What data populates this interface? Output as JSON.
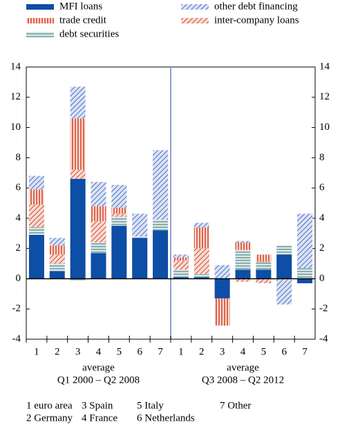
{
  "chart_data": {
    "type": "stacked-bar",
    "categories": [
      "1",
      "2",
      "3",
      "4",
      "5",
      "6",
      "7",
      "1",
      "2",
      "3",
      "4",
      "5",
      "6",
      "7"
    ],
    "groups": [
      {
        "label": "average",
        "period": "Q1 2000 – Q2 2008"
      },
      {
        "label": "average",
        "period": "Q3 2008 – Q2 2012"
      }
    ],
    "series": [
      {
        "name": "MFI loans",
        "color": "#0d4ea6",
        "pattern": "solid",
        "values": [
          2.9,
          0.5,
          6.6,
          1.7,
          3.5,
          2.7,
          3.2,
          0.1,
          0.1,
          -1.3,
          0.6,
          0.6,
          1.6,
          -0.3
        ]
      },
      {
        "name": "debt securities",
        "color": "#6f9fa0",
        "pattern": "horizontal",
        "values": [
          0.5,
          0.5,
          -0.1,
          0.7,
          0.6,
          0.1,
          0.7,
          0.5,
          0.2,
          0,
          1.3,
          0.5,
          0.6,
          0.7
        ]
      },
      {
        "name": "inter-company loans",
        "color": "#d8472a",
        "pattern": "diagonal",
        "values": [
          1.5,
          0.6,
          0.6,
          1.4,
          0.2,
          0,
          0,
          0.6,
          1.7,
          0,
          -0.2,
          -0.3,
          -0.1,
          0
        ]
      },
      {
        "name": "trade credit",
        "color": "#d8472a",
        "pattern": "vertical",
        "values": [
          1.0,
          0.6,
          3.4,
          1.0,
          0.4,
          0,
          0,
          0.2,
          1.4,
          -1.8,
          0.5,
          0.5,
          0,
          0
        ]
      },
      {
        "name": "other debt financing",
        "color": "#4a6fc4",
        "pattern": "diagonal",
        "values": [
          0.9,
          0.5,
          2.1,
          1.6,
          1.5,
          1.5,
          4.6,
          0.2,
          0.3,
          0.9,
          0.1,
          0,
          -1.6,
          3.6
        ]
      }
    ],
    "legend_order": [
      0,
      3,
      1,
      4,
      2
    ],
    "ylim": [
      -4,
      14
    ],
    "yticks": [
      -4,
      -2,
      0,
      2,
      4,
      6,
      8,
      10,
      12,
      14
    ],
    "notes": [
      "1 euro area",
      "3 Spain",
      "5 Italy",
      "7 Other",
      "2 Germany",
      "4 France",
      "6 Netherlands"
    ]
  }
}
